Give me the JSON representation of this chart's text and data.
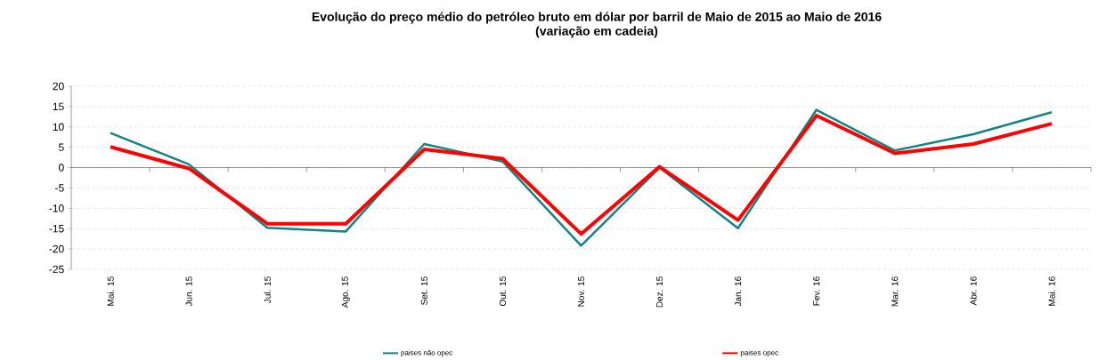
{
  "chart_data": {
    "type": "line",
    "title": "Evolução do preço médio do petróleo bruto em dólar por barril de Maio de 2015 ao Maio de 2016",
    "subtitle": "(variação em cadeia)",
    "categories": [
      "Mai. 15",
      "Jun. 15",
      "Jul. 15",
      "Ago. 15",
      "Set. 15",
      "Out. 15",
      "Nov. 15",
      "Dez. 15",
      "Jan. 16",
      "Fev. 16",
      "Mar. 16",
      "Abr. 16",
      "Mai. 16"
    ],
    "series": [
      {
        "name": "paises não opec",
        "color": "#138482",
        "values": [
          8.5,
          0.8,
          -14.8,
          -15.7,
          5.8,
          1.5,
          -19.2,
          0,
          -14.9,
          14.2,
          4.2,
          8.2,
          13.6
        ]
      },
      {
        "name": "paises opec",
        "color": "#ff0000",
        "values": [
          5.1,
          -0.2,
          -13.8,
          -13.8,
          4.5,
          2.2,
          -16.3,
          0.2,
          -12.9,
          12.8,
          3.5,
          5.8,
          10.8
        ]
      }
    ],
    "ylim": [
      -25,
      20
    ],
    "yticks": [
      -25,
      -20,
      -15,
      -10,
      -5,
      0,
      5,
      10,
      15,
      20
    ],
    "grid": "y",
    "legend": "bottom",
    "marker": "none",
    "line_style": "solid"
  }
}
